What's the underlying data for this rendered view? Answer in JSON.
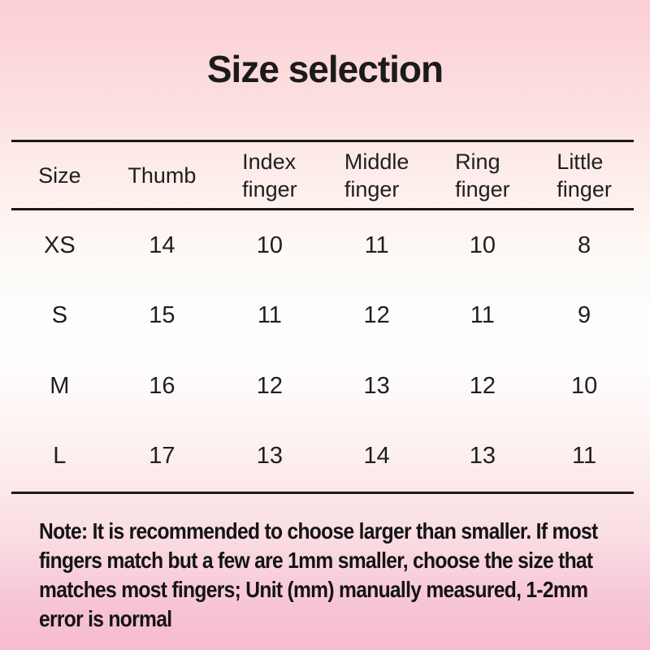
{
  "chart_data": {
    "type": "table",
    "title": "Size selection",
    "columns": [
      {
        "label": "Size",
        "lines": [
          "Size"
        ]
      },
      {
        "label": "Thumb",
        "lines": [
          "Thumb"
        ]
      },
      {
        "label": "Index finger",
        "lines": [
          "Index",
          "finger"
        ]
      },
      {
        "label": "Middle finger",
        "lines": [
          "Middle",
          "finger"
        ]
      },
      {
        "label": "Ring finger",
        "lines": [
          "Ring",
          "finger"
        ]
      },
      {
        "label": "Little finger",
        "lines": [
          "Little",
          "finger"
        ]
      }
    ],
    "rows": [
      {
        "size": "XS",
        "values": [
          "14",
          "10",
          "11",
          "10",
          "8"
        ]
      },
      {
        "size": "S",
        "values": [
          "15",
          "11",
          "12",
          "11",
          "9"
        ]
      },
      {
        "size": "M",
        "values": [
          "16",
          "12",
          "13",
          "12",
          "10"
        ]
      },
      {
        "size": "L",
        "values": [
          "17",
          "13",
          "14",
          "13",
          "11"
        ]
      }
    ],
    "note": "Note: It is recommended to choose larger than smaller. If most fingers match but a few are 1mm smaller, choose the size that matches most fingers; Unit (mm) manually measured, 1-2mm error is normal",
    "note_lines": [
      "Note: It is recommended to choose larger than smaller. If most",
      "fingers match but a few are 1mm smaller, choose the size that",
      "matches most fingers; Unit (mm) manually measured, 1-2mm",
      "error is normal"
    ]
  },
  "colors": {
    "background_top": "#fbcfd4",
    "background_middle": "#fefefe",
    "background_bottom": "#f6bccf",
    "text": "#1b1b1b",
    "rule": "#1a1a1a"
  }
}
